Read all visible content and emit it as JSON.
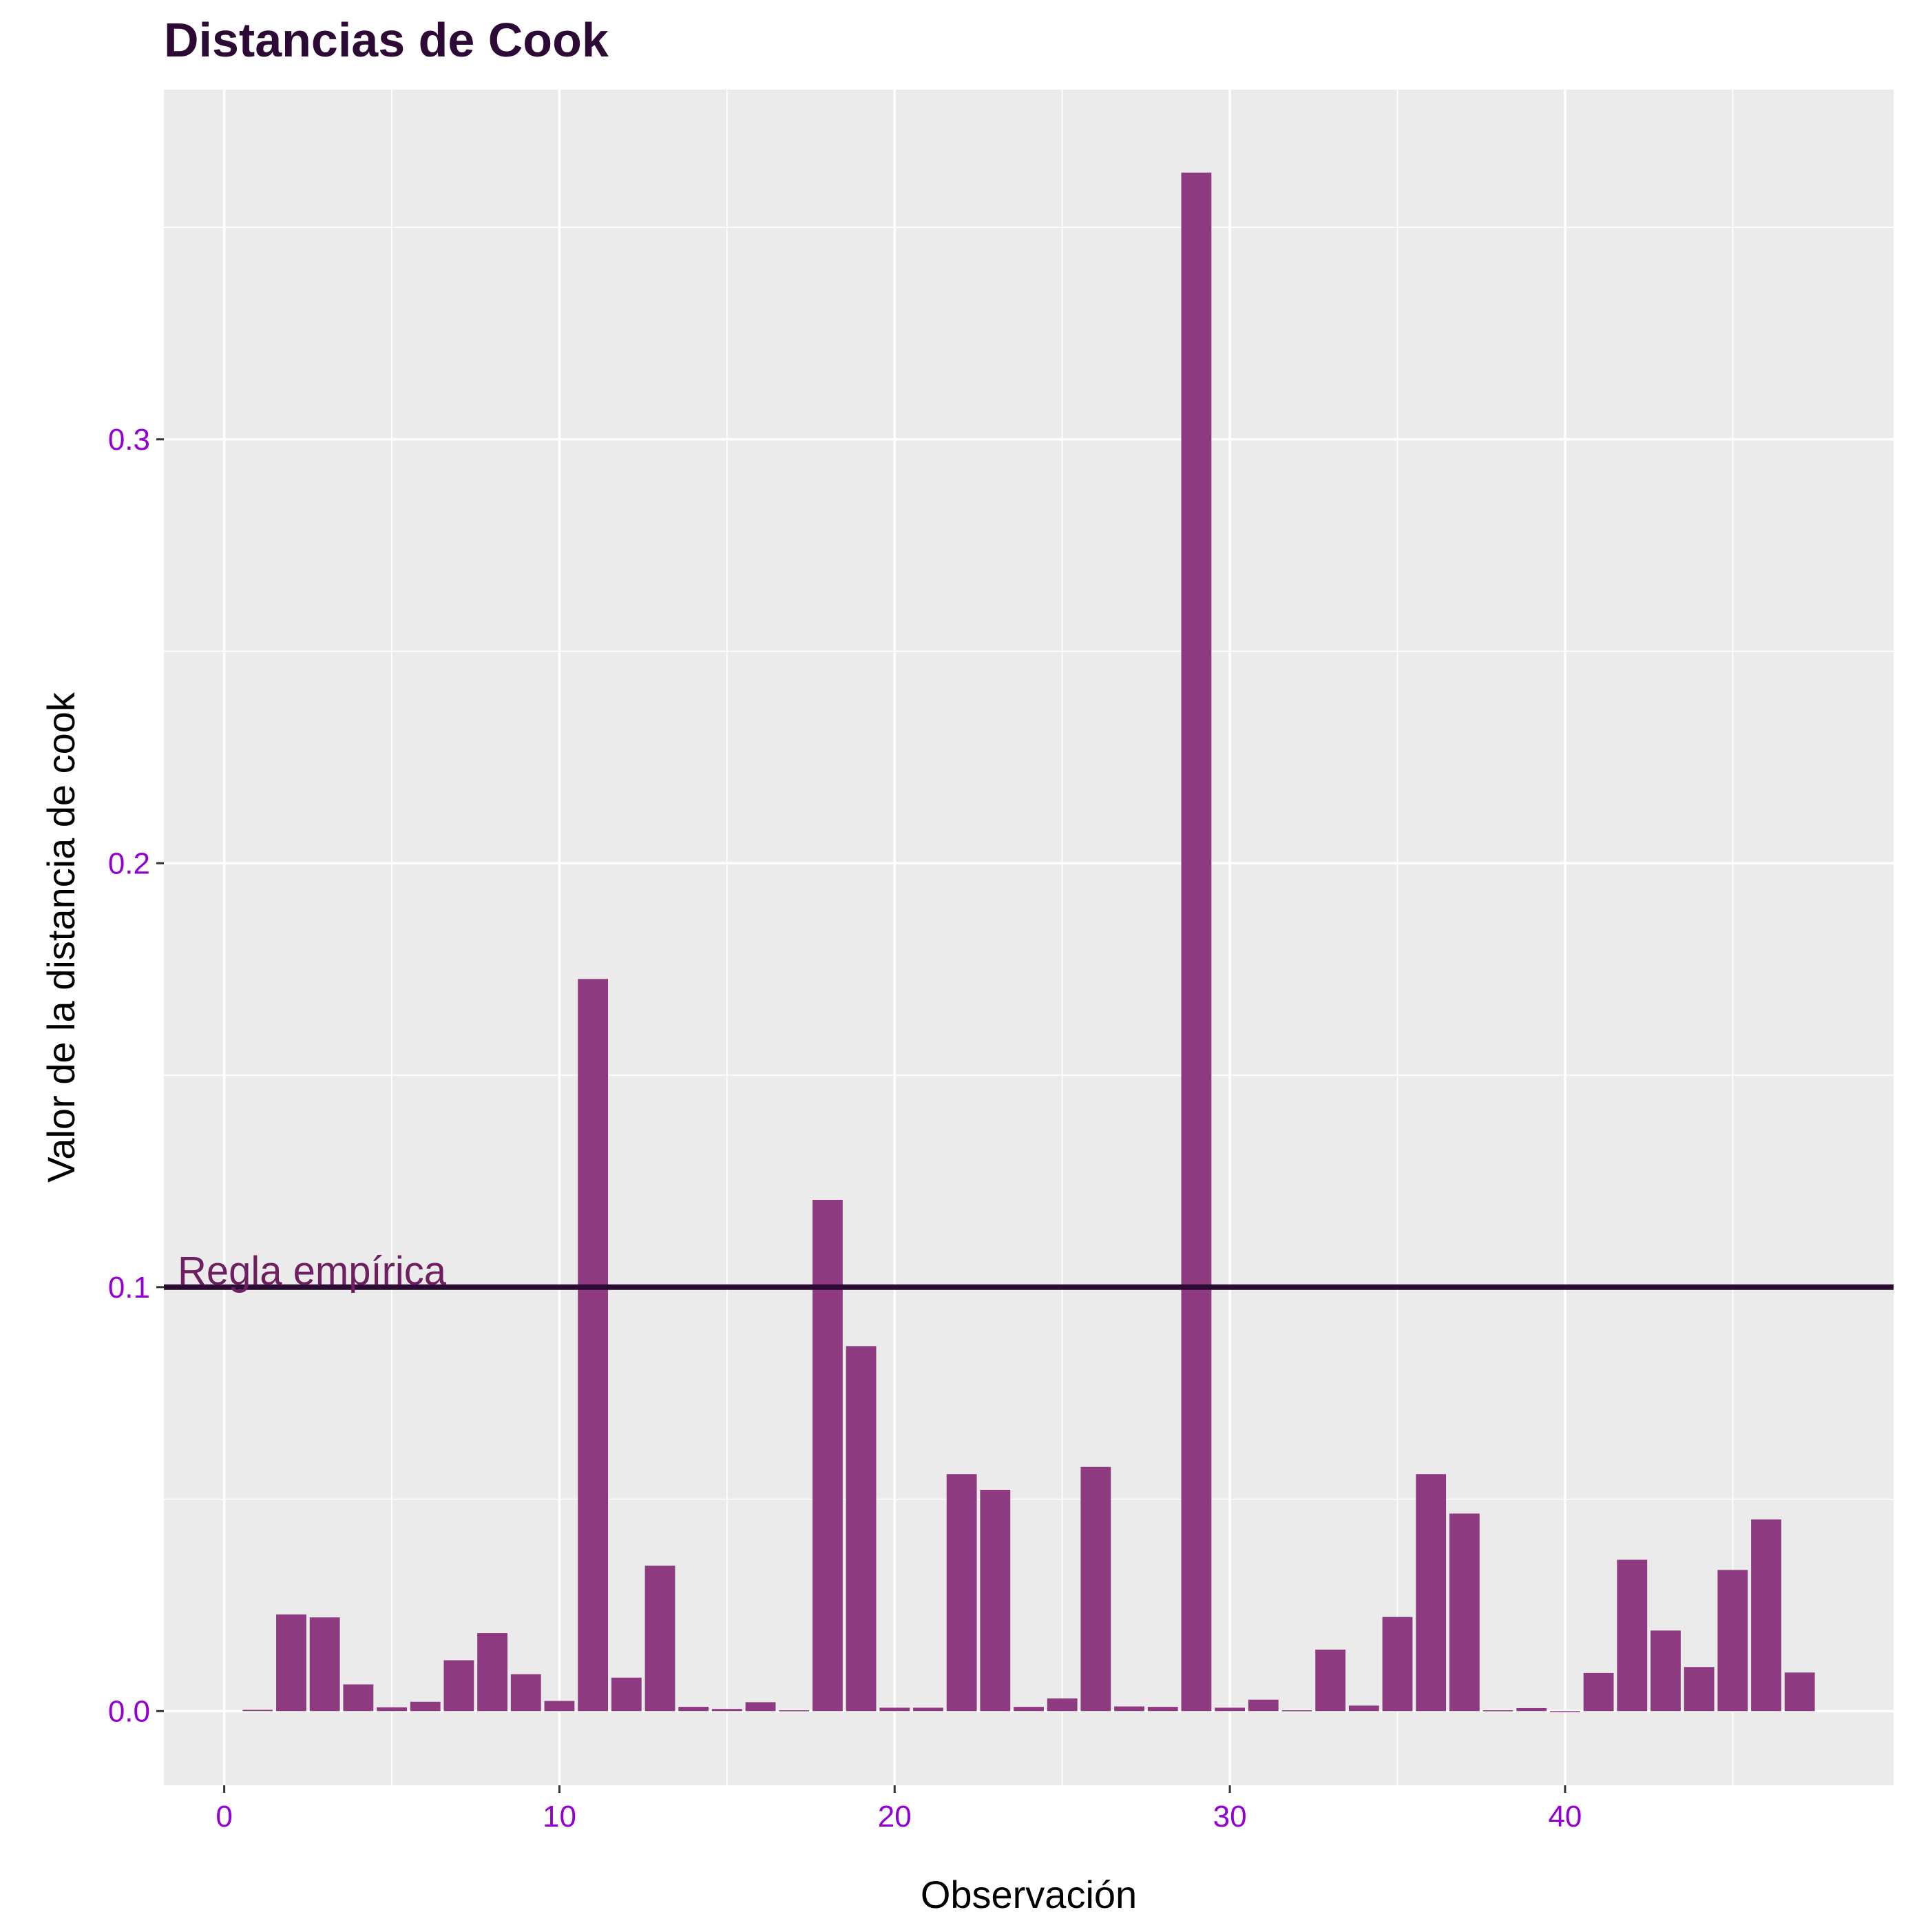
{
  "chart_data": {
    "type": "bar",
    "title": "Distancias de Cook",
    "xlabel": "Observación",
    "ylabel": "Valor de la distancia de cook",
    "xlim": [
      -1.8,
      49.8
    ],
    "ylim": [
      -0.0175,
      0.3825
    ],
    "x_ticks": [
      0,
      10,
      20,
      30,
      40
    ],
    "y_ticks": [
      0.0,
      0.1,
      0.2,
      0.3
    ],
    "x_tick_labels": [
      "0",
      "10",
      "20",
      "30",
      "40"
    ],
    "y_tick_labels": [
      "0.0",
      "0.1",
      "0.2",
      "0.3"
    ],
    "grid": true,
    "bar_color": "#8e3a80",
    "panel_color": "#ebebeb",
    "grid_color": "#ffffff",
    "tick_label_color": "#9400d3",
    "observations": [
      1,
      2,
      3,
      4,
      5,
      6,
      7,
      8,
      9,
      10,
      11,
      12,
      13,
      14,
      15,
      16,
      17,
      18,
      19,
      20,
      21,
      22,
      23,
      24,
      25,
      26,
      27,
      28,
      29,
      30,
      31,
      32,
      33,
      34,
      35,
      36,
      37,
      38,
      39,
      40,
      41,
      42,
      43,
      44,
      45,
      46,
      47
    ],
    "values": [
      0.0003,
      0.0228,
      0.0221,
      0.0063,
      0.0009,
      0.0022,
      0.012,
      0.0184,
      0.0087,
      0.0024,
      0.1727,
      0.0079,
      0.0343,
      0.001,
      0.0005,
      0.0021,
      0.0002,
      0.1206,
      0.0861,
      0.0008,
      0.0008,
      0.0559,
      0.0522,
      0.001,
      0.003,
      0.0576,
      0.0011,
      0.001,
      0.3629,
      0.0008,
      0.0027,
      0.0002,
      0.0145,
      0.0013,
      0.0222,
      0.0559,
      0.0466,
      0.0002,
      0.0007,
      0.0,
      0.009,
      0.0357,
      0.019,
      0.0104,
      0.0333,
      0.0452,
      0.0091
    ],
    "reference_line": {
      "value": 0.1,
      "label": "Regla empírica",
      "color": "#2b0a33",
      "label_color": "#6e1f60"
    }
  }
}
